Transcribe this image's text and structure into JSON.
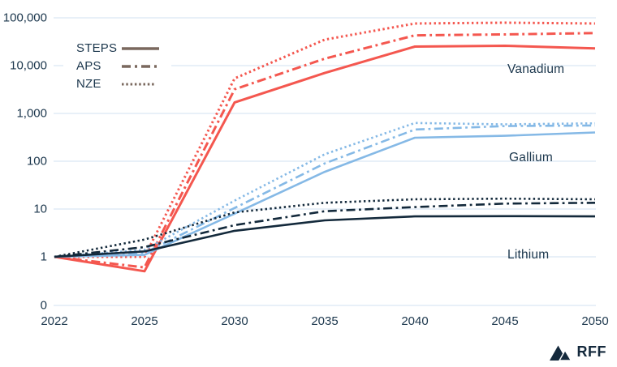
{
  "chart_data": {
    "type": "line",
    "title": "",
    "x_categories": [
      "2022",
      "2025",
      "2030",
      "2035",
      "2040",
      "2045",
      "2050"
    ],
    "y_axis": {
      "scale": "log",
      "tick_labels": [
        "100,000",
        "10,000",
        "1,000",
        "100",
        "10",
        "1",
        "0"
      ],
      "tick_values": [
        100000,
        10000,
        1000,
        100,
        10,
        1,
        0
      ],
      "gridlines": true,
      "axis_break_at_zero": true
    },
    "legend": {
      "position": "top-left",
      "sample_color": "#7a685e",
      "items": [
        {
          "label": "STEPS",
          "style": "solid"
        },
        {
          "label": "APS",
          "style": "dash-dot"
        },
        {
          "label": "NZE",
          "style": "dotted"
        }
      ]
    },
    "groups": [
      {
        "name": "Vanadium",
        "color": "#f4574f",
        "label_x": 625,
        "label_y": 77,
        "series": [
          {
            "scenario": "STEPS",
            "style": "solid",
            "values": [
              1,
              0.5,
              1700,
              7000,
              25000,
              26000,
              23000
            ]
          },
          {
            "scenario": "APS",
            "style": "dash-dot",
            "values": [
              1,
              0.6,
              3200,
              14000,
              43000,
              45000,
              48000
            ]
          },
          {
            "scenario": "NZE",
            "style": "dotted",
            "values": [
              1,
              1.0,
              5400,
              35000,
              76000,
              79000,
              76000
            ]
          }
        ]
      },
      {
        "name": "Gallium",
        "color": "#85b9e6",
        "label_x": 627,
        "label_y": 186,
        "series": [
          {
            "scenario": "STEPS",
            "style": "solid",
            "values": [
              1,
              1.1,
              8,
              60,
              310,
              340,
              400
            ]
          },
          {
            "scenario": "APS",
            "style": "dash-dot",
            "values": [
              1,
              1.2,
              10.5,
              90,
              460,
              545,
              560
            ]
          },
          {
            "scenario": "NZE",
            "style": "dotted",
            "values": [
              1,
              1.4,
              15,
              140,
              630,
              590,
              620
            ]
          }
        ]
      },
      {
        "name": "Lithium",
        "color": "#13293b",
        "label_x": 625,
        "label_y": 306,
        "series": [
          {
            "scenario": "STEPS",
            "style": "solid",
            "values": [
              1,
              1.3,
              3.5,
              5.8,
              7,
              7.1,
              7
            ]
          },
          {
            "scenario": "APS",
            "style": "dash-dot",
            "values": [
              1,
              1.6,
              4.6,
              9,
              11,
              13,
              13.5
            ]
          },
          {
            "scenario": "NZE",
            "style": "dotted",
            "values": [
              1,
              2.3,
              8.5,
              13.5,
              16,
              16.5,
              16
            ]
          }
        ]
      }
    ],
    "colors": {
      "grid": "#d9e8f4",
      "axis_text": "#1c374d",
      "vanadium": "#f4574f",
      "gallium": "#85b9e6",
      "lithium": "#13293b"
    }
  },
  "footer": {
    "logo_text": "RFF",
    "logo_icon": "mountains-icon"
  }
}
